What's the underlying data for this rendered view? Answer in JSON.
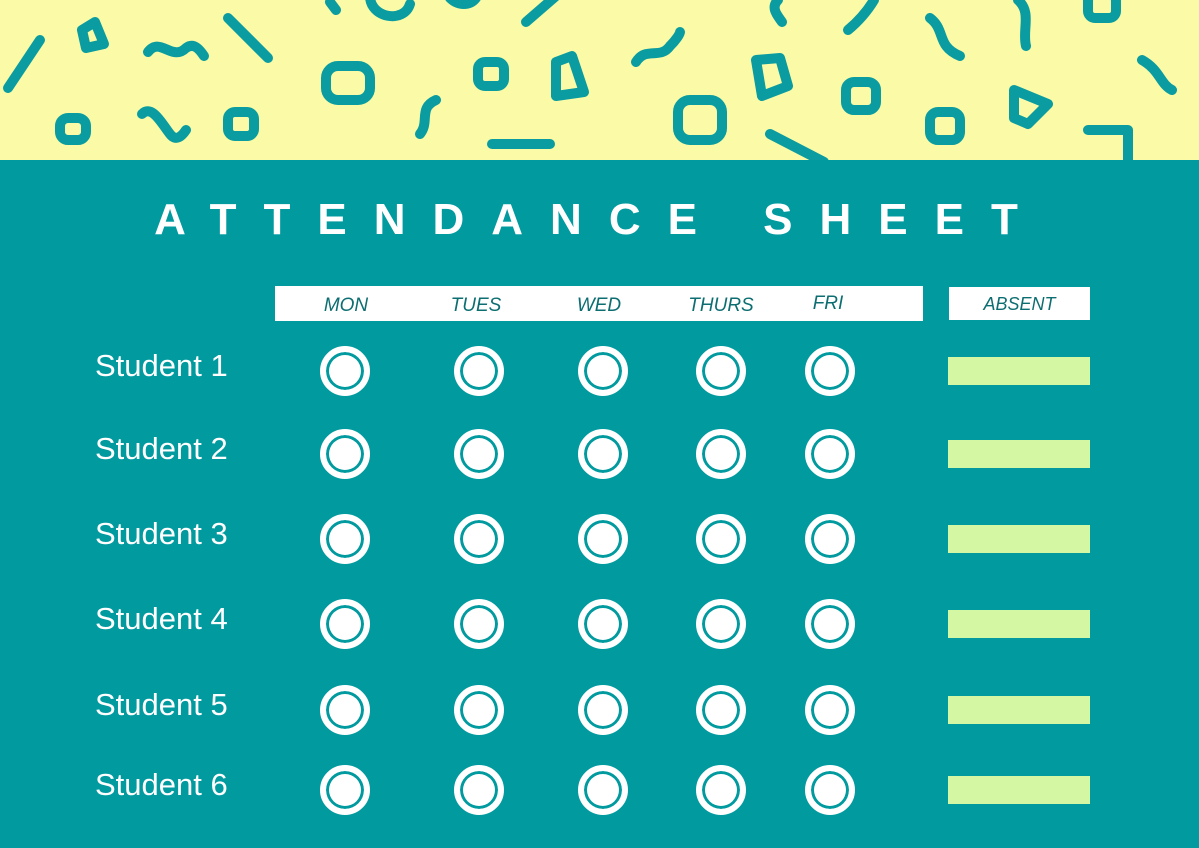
{
  "title": "ATTENDANCE SHEET",
  "days": [
    "MON",
    "TUES",
    "WED",
    "THURS",
    "FRI"
  ],
  "absent_label": "ABSENT",
  "students": [
    "Student 1",
    "Student 2",
    "Student 3",
    "Student 4",
    "Student 5",
    "Student 6"
  ],
  "colors": {
    "background": "#009a9f",
    "header_band": "#fbfba7",
    "squiggle": "#0a9ca0",
    "day_text": "#0d6e72",
    "absent_bar": "#d4f7a4",
    "text": "#ffffff"
  }
}
